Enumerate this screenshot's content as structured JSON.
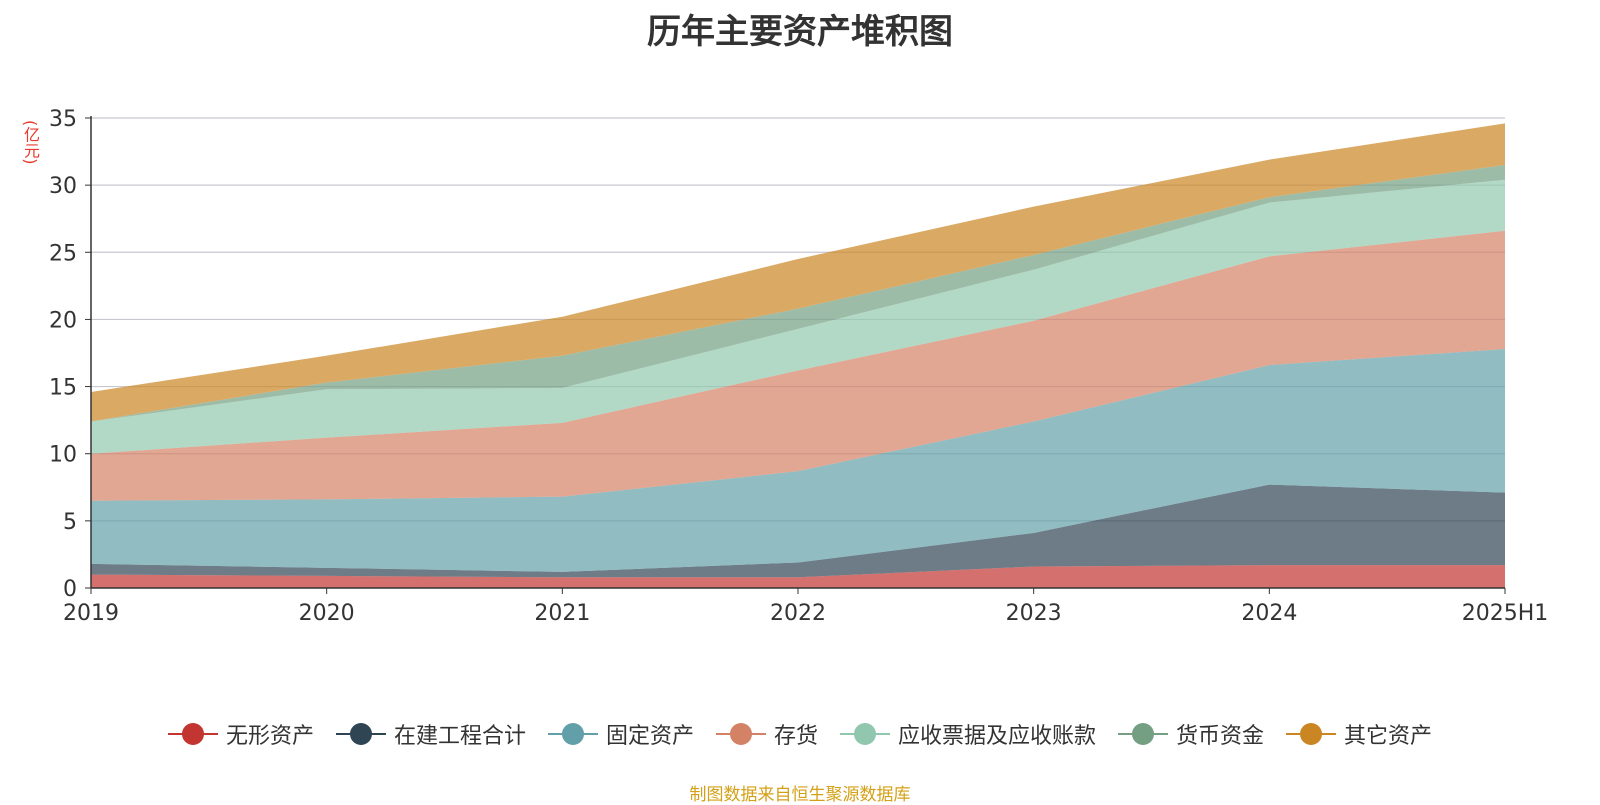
{
  "chart_data": {
    "type": "area",
    "stacked": true,
    "title": "历年主要资产堆积图",
    "ylabel": "(亿元)",
    "xlabel": "",
    "categories": [
      "2019",
      "2020",
      "2021",
      "2022",
      "2023",
      "2024",
      "2025H1"
    ],
    "ylim": [
      0,
      35
    ],
    "yticks": [
      0,
      5,
      10,
      15,
      20,
      25,
      30,
      35
    ],
    "grid": true,
    "legend_position": "bottom",
    "series": [
      {
        "name": "无形资产",
        "color": "#c23531",
        "values": [
          1.0,
          0.9,
          0.8,
          0.8,
          1.6,
          1.7,
          1.7
        ]
      },
      {
        "name": "在建工程合计",
        "color": "#2f4554",
        "values": [
          0.8,
          0.6,
          0.4,
          1.1,
          2.5,
          6.0,
          5.4
        ]
      },
      {
        "name": "固定资产",
        "color": "#61a0a8",
        "values": [
          4.7,
          5.1,
          5.6,
          6.8,
          8.3,
          8.9,
          10.7
        ]
      },
      {
        "name": "存货",
        "color": "#d48265",
        "values": [
          3.5,
          4.6,
          5.5,
          7.5,
          7.5,
          8.1,
          8.8
        ]
      },
      {
        "name": "应收票据及应收账款",
        "color": "#91c7ae",
        "values": [
          2.4,
          3.6,
          2.6,
          3.1,
          3.8,
          4.0,
          3.8
        ]
      },
      {
        "name": "货币资金",
        "color": "#749f83",
        "values": [
          0.0,
          0.5,
          2.4,
          1.5,
          1.1,
          0.4,
          1.1
        ]
      },
      {
        "name": "其它资产",
        "color": "#ca8622",
        "values": [
          2.2,
          2.0,
          2.9,
          3.7,
          3.6,
          2.8,
          3.1
        ]
      }
    ]
  },
  "source_note": "制图数据来自恒生聚源数据库"
}
